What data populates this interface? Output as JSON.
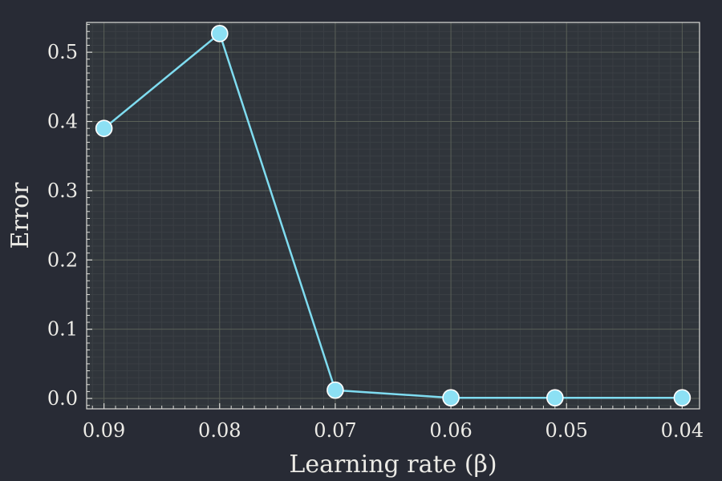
{
  "chart_data": {
    "type": "line",
    "xlabel": "Learning rate (β)",
    "ylabel": "Error",
    "x": [
      0.09,
      0.08,
      0.07,
      0.06,
      0.051,
      0.04
    ],
    "series": [
      {
        "values": [
          0.39,
          0.527,
          0.012,
          0.001,
          0.001,
          0.001
        ]
      }
    ],
    "xlim": [
      0.0915,
      0.0385
    ],
    "x_reversed": true,
    "ylim": [
      -0.015,
      0.543
    ],
    "x_ticks": [
      0.09,
      0.08,
      0.07,
      0.06,
      0.05,
      0.04
    ],
    "x_tick_labels": [
      "0.09",
      "0.08",
      "0.07",
      "0.06",
      "0.05",
      "0.04"
    ],
    "y_ticks": [
      0.0,
      0.1,
      0.2,
      0.3,
      0.4,
      0.5
    ],
    "y_tick_labels": [
      "0.0",
      "0.1",
      "0.2",
      "0.3",
      "0.4",
      "0.5"
    ],
    "grid": true,
    "legend": "none",
    "colors": {
      "background": "#282b35",
      "plot_background": "#30353b",
      "line": "#7fdcf0",
      "marker": "#8ce0f4",
      "grid": "#5a6058",
      "minor_grid": "#3a3f44",
      "frame": "#dcdcd8",
      "text": "#ecebe6"
    }
  }
}
